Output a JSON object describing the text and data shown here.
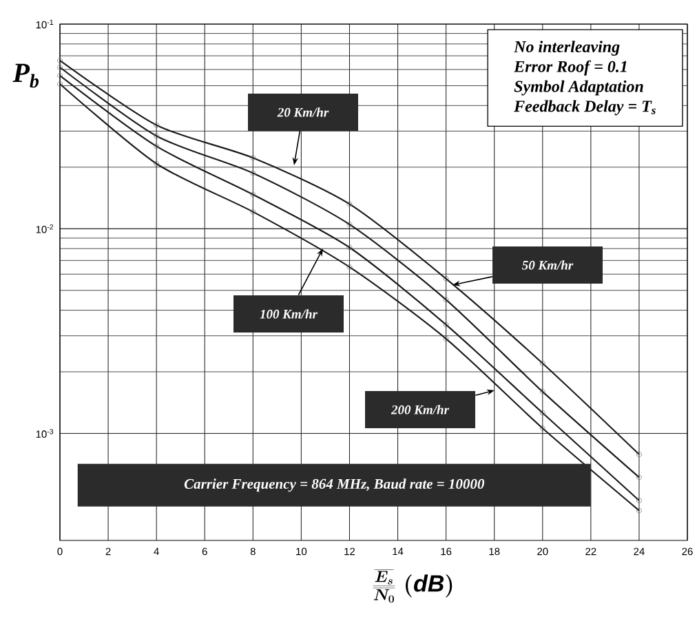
{
  "chart_data": {
    "type": "line",
    "ylabel": "P$_{b}$",
    "xlabel": "\\frac{\\overline{E_{s}}}{\\overline{N_{0}}}\\;\\mathit{(dB)}",
    "x": [
      0,
      4,
      8,
      12,
      16,
      20,
      24
    ],
    "series": [
      {
        "color": "#1a1a1a",
        "values": [
          0.0664,
          0.0321,
          0.0222,
          0.0132,
          0.0057,
          0.0022,
          0.00079
        ]
      },
      {
        "color": "#1a1a1a",
        "values": [
          0.0615,
          0.0284,
          0.0187,
          0.0105,
          0.0045,
          0.0016,
          0.00061
        ]
      },
      {
        "color": "#1a1a1a",
        "values": [
          0.056,
          0.0253,
          0.0147,
          0.0081,
          0.0034,
          0.00126,
          0.00047
        ]
      },
      {
        "color": "#1a1a1a",
        "values": [
          0.051,
          0.0208,
          0.0121,
          0.0065,
          0.0029,
          0.00106,
          0.00042
        ]
      }
    ],
    "xlim": [
      0,
      26
    ],
    "xticks": [
      0,
      2,
      4,
      6,
      8,
      10,
      12,
      14,
      16,
      18,
      20,
      22,
      24,
      26
    ],
    "ylim": [
      0.0003,
      0.1
    ],
    "yticks": [
      {
        "value": 0.001,
        "label": "10$^{-3}$"
      },
      {
        "value": 0.01,
        "label": "10$^{-2}$"
      },
      {
        "value": 0.1,
        "label": "10$^{-1}$"
      }
    ],
    "log": "y",
    "grid": true,
    "marker": "circle",
    "line_style": "solid",
    "annotations": [
      "20 Km/hr",
      "50 Km/hr",
      {
        "text": "100 Km/hr",
        "x": 10.9,
        "y": 0.008
      },
      "200 Km/hr",
      "No interleaving",
      "Error Roof = 0.1",
      "Symbol Adaptation",
      "Feedback Delay = T$_{s}$",
      "Carrier Frequency = 864 MHz, Baud rate = 10000"
    ]
  }
}
